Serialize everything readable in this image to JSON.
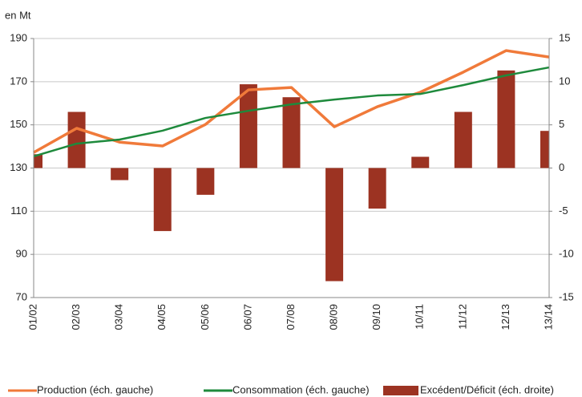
{
  "chart_data": {
    "type": "combo",
    "unit_label": "en Mt",
    "categories": [
      "01/02",
      "02/03",
      "03/04",
      "04/05",
      "05/06",
      "06/07",
      "07/08",
      "08/09",
      "09/10",
      "10/11",
      "11/12",
      "12/13",
      "13/14"
    ],
    "series": [
      {
        "name": "Production (éch. gauche)",
        "type": "line",
        "color": "#f07a3a",
        "axis": "y",
        "values": [
          137.2,
          148.4,
          142,
          140.2,
          150.2,
          166.2,
          167.3,
          149.1,
          158.4,
          165.1,
          174.4,
          184.4,
          181.4
        ]
      },
      {
        "name": "Consommation (éch. gauche)",
        "type": "line",
        "color": "#1e8a3c",
        "axis": "y",
        "values": [
          135.4,
          141.3,
          143.2,
          147.3,
          153.2,
          156.5,
          159.5,
          161.7,
          163.6,
          164.3,
          168.4,
          172.9,
          176.6
        ]
      },
      {
        "name": "Excédent/Déficit (éch. droite)",
        "type": "bar",
        "color": "#9c3322",
        "axis": "y2",
        "values": [
          1.6,
          6.5,
          -1.4,
          -7.3,
          -3.1,
          9.7,
          8.2,
          -13.1,
          -4.7,
          1.3,
          6.5,
          11.3,
          4.3
        ]
      }
    ],
    "ylim": [
      70,
      190
    ],
    "yticks": [
      70,
      90,
      110,
      130,
      150,
      170,
      190
    ],
    "y2lim": [
      -15,
      15
    ],
    "y2ticks": [
      -15,
      -10,
      -5,
      0,
      5,
      10,
      15
    ],
    "grid": true
  }
}
